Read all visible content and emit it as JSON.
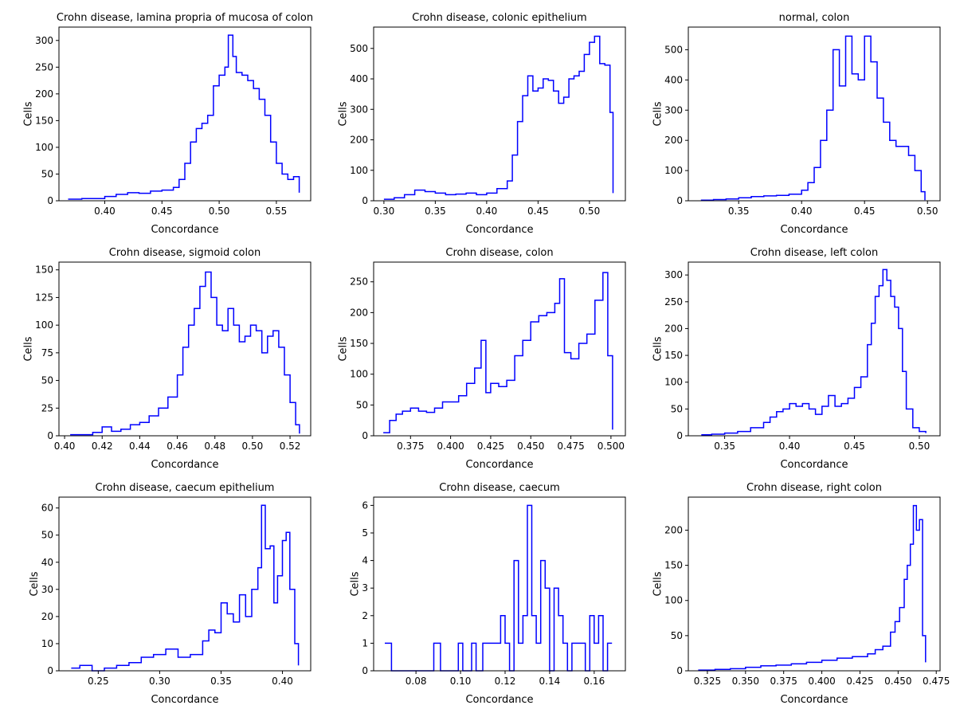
{
  "chart_data": [
    {
      "type": "line",
      "title": "Crohn disease, lamina propria of mucosa of colon",
      "xlabel": "Concordance",
      "ylabel": "Cells",
      "xlim": [
        0.36,
        0.58
      ],
      "ylim": [
        0,
        325
      ],
      "xticks": [
        0.4,
        0.45,
        0.5,
        0.55
      ],
      "xtick_labels": [
        "0.40",
        "0.45",
        "0.50",
        "0.55"
      ],
      "yticks": [
        0,
        50,
        100,
        150,
        200,
        250,
        300
      ],
      "ytick_labels": [
        "0",
        "50",
        "100",
        "150",
        "200",
        "250",
        "300"
      ],
      "series": [
        {
          "x": [
            0.368,
            0.38,
            0.39,
            0.4,
            0.41,
            0.42,
            0.43,
            0.44,
            0.45,
            0.46,
            0.465,
            0.47,
            0.475,
            0.48,
            0.485,
            0.49,
            0.495,
            0.5,
            0.505,
            0.508,
            0.512,
            0.515,
            0.52,
            0.525,
            0.53,
            0.535,
            0.54,
            0.545,
            0.55,
            0.555,
            0.56,
            0.565,
            0.57
          ],
          "y": [
            3,
            4,
            4,
            8,
            12,
            15,
            14,
            18,
            20,
            25,
            40,
            70,
            110,
            135,
            145,
            160,
            215,
            235,
            250,
            310,
            270,
            240,
            235,
            225,
            210,
            190,
            160,
            110,
            70,
            50,
            40,
            45,
            15
          ]
        }
      ],
      "color": "#0000ff"
    },
    {
      "type": "line",
      "title": "Crohn disease, colonic epithelium",
      "xlabel": "Concordance",
      "ylabel": "Cells",
      "xlim": [
        0.29,
        0.535
      ],
      "ylim": [
        0,
        570
      ],
      "xticks": [
        0.3,
        0.35,
        0.4,
        0.45,
        0.5
      ],
      "xtick_labels": [
        "0.30",
        "0.35",
        "0.40",
        "0.45",
        "0.50"
      ],
      "yticks": [
        0,
        100,
        200,
        300,
        400,
        500
      ],
      "ytick_labels": [
        "0",
        "100",
        "200",
        "300",
        "400",
        "500"
      ],
      "series": [
        {
          "x": [
            0.3,
            0.31,
            0.32,
            0.33,
            0.34,
            0.35,
            0.36,
            0.37,
            0.38,
            0.39,
            0.4,
            0.41,
            0.42,
            0.425,
            0.43,
            0.435,
            0.44,
            0.445,
            0.45,
            0.455,
            0.46,
            0.465,
            0.47,
            0.475,
            0.48,
            0.485,
            0.49,
            0.495,
            0.5,
            0.505,
            0.51,
            0.515,
            0.52,
            0.523
          ],
          "y": [
            5,
            10,
            20,
            35,
            30,
            25,
            20,
            22,
            25,
            20,
            25,
            40,
            65,
            150,
            260,
            345,
            410,
            360,
            370,
            400,
            395,
            360,
            320,
            340,
            400,
            410,
            425,
            480,
            520,
            540,
            450,
            445,
            290,
            25
          ]
        }
      ],
      "color": "#0000ff"
    },
    {
      "type": "line",
      "title": "normal, colon",
      "xlabel": "Concordance",
      "ylabel": "Cells",
      "xlim": [
        0.31,
        0.51
      ],
      "ylim": [
        0,
        575
      ],
      "xticks": [
        0.35,
        0.4,
        0.45,
        0.5
      ],
      "xtick_labels": [
        "0.35",
        "0.40",
        "0.45",
        "0.50"
      ],
      "yticks": [
        0,
        100,
        200,
        300,
        400,
        500
      ],
      "ytick_labels": [
        "0",
        "100",
        "200",
        "300",
        "400",
        "500"
      ],
      "series": [
        {
          "x": [
            0.32,
            0.33,
            0.34,
            0.35,
            0.36,
            0.37,
            0.38,
            0.39,
            0.4,
            0.405,
            0.41,
            0.415,
            0.42,
            0.425,
            0.43,
            0.435,
            0.44,
            0.445,
            0.45,
            0.455,
            0.46,
            0.465,
            0.47,
            0.475,
            0.48,
            0.485,
            0.49,
            0.495,
            0.498
          ],
          "y": [
            2,
            4,
            6,
            10,
            14,
            16,
            18,
            22,
            35,
            60,
            110,
            200,
            300,
            500,
            380,
            545,
            420,
            400,
            545,
            460,
            340,
            260,
            200,
            180,
            180,
            150,
            100,
            30,
            2
          ]
        }
      ],
      "color": "#0000ff"
    },
    {
      "type": "line",
      "title": "Crohn disease, sigmoid colon",
      "xlabel": "Concordance",
      "ylabel": "Cells",
      "xlim": [
        0.397,
        0.531
      ],
      "ylim": [
        0,
        157
      ],
      "xticks": [
        0.4,
        0.42,
        0.44,
        0.46,
        0.48,
        0.5,
        0.52
      ],
      "xtick_labels": [
        "0.40",
        "0.42",
        "0.44",
        "0.46",
        "0.48",
        "0.50",
        "0.52"
      ],
      "yticks": [
        0,
        25,
        50,
        75,
        100,
        125,
        150
      ],
      "ytick_labels": [
        "0",
        "25",
        "50",
        "75",
        "100",
        "125",
        "150"
      ],
      "series": [
        {
          "x": [
            0.403,
            0.41,
            0.415,
            0.42,
            0.425,
            0.43,
            0.435,
            0.44,
            0.445,
            0.45,
            0.455,
            0.46,
            0.463,
            0.466,
            0.469,
            0.472,
            0.475,
            0.478,
            0.481,
            0.484,
            0.487,
            0.49,
            0.493,
            0.496,
            0.499,
            0.502,
            0.505,
            0.508,
            0.511,
            0.514,
            0.517,
            0.52,
            0.523,
            0.525
          ],
          "y": [
            1,
            1,
            3,
            8,
            4,
            6,
            10,
            12,
            18,
            25,
            35,
            55,
            80,
            100,
            115,
            135,
            148,
            125,
            100,
            95,
            115,
            100,
            85,
            90,
            100,
            95,
            75,
            90,
            95,
            80,
            55,
            30,
            10,
            2
          ]
        }
      ],
      "color": "#0000ff"
    },
    {
      "type": "line",
      "title": "Crohn disease, colon",
      "xlabel": "Concordance",
      "ylabel": "Cells",
      "xlim": [
        0.352,
        0.509
      ],
      "ylim": [
        0,
        282
      ],
      "xticks": [
        0.375,
        0.4,
        0.425,
        0.45,
        0.475,
        0.5
      ],
      "xtick_labels": [
        "0.375",
        "0.400",
        "0.425",
        "0.450",
        "0.475",
        "0.500"
      ],
      "yticks": [
        0,
        50,
        100,
        150,
        200,
        250
      ],
      "ytick_labels": [
        "0",
        "50",
        "100",
        "150",
        "200",
        "250"
      ],
      "series": [
        {
          "x": [
            0.358,
            0.362,
            0.366,
            0.37,
            0.375,
            0.38,
            0.385,
            0.39,
            0.395,
            0.4,
            0.405,
            0.41,
            0.415,
            0.419,
            0.422,
            0.425,
            0.43,
            0.435,
            0.44,
            0.445,
            0.45,
            0.455,
            0.46,
            0.465,
            0.468,
            0.471,
            0.475,
            0.48,
            0.485,
            0.49,
            0.495,
            0.498,
            0.501
          ],
          "y": [
            5,
            25,
            35,
            40,
            45,
            40,
            38,
            45,
            55,
            55,
            65,
            85,
            110,
            155,
            70,
            85,
            80,
            90,
            130,
            155,
            185,
            195,
            200,
            215,
            255,
            135,
            125,
            150,
            165,
            220,
            265,
            130,
            10
          ]
        }
      ],
      "color": "#0000ff"
    },
    {
      "type": "line",
      "title": "Crohn disease, left colon",
      "xlabel": "Concordance",
      "ylabel": "Cells",
      "xlim": [
        0.322,
        0.516
      ],
      "ylim": [
        0,
        324
      ],
      "xticks": [
        0.35,
        0.4,
        0.45,
        0.5
      ],
      "xtick_labels": [
        "0.35",
        "0.40",
        "0.45",
        "0.50"
      ],
      "yticks": [
        0,
        50,
        100,
        150,
        200,
        250,
        300
      ],
      "ytick_labels": [
        "0",
        "50",
        "100",
        "150",
        "200",
        "250",
        "300"
      ],
      "series": [
        {
          "x": [
            0.332,
            0.34,
            0.35,
            0.36,
            0.37,
            0.38,
            0.385,
            0.39,
            0.395,
            0.4,
            0.405,
            0.41,
            0.415,
            0.42,
            0.425,
            0.43,
            0.435,
            0.44,
            0.445,
            0.45,
            0.455,
            0.46,
            0.463,
            0.466,
            0.469,
            0.472,
            0.475,
            0.478,
            0.481,
            0.484,
            0.487,
            0.49,
            0.495,
            0.5,
            0.505
          ],
          "y": [
            2,
            3,
            5,
            8,
            15,
            25,
            35,
            45,
            50,
            60,
            55,
            60,
            50,
            40,
            55,
            75,
            55,
            60,
            70,
            90,
            110,
            170,
            210,
            260,
            280,
            310,
            290,
            260,
            240,
            200,
            120,
            50,
            15,
            8,
            5
          ]
        }
      ],
      "color": "#0000ff"
    },
    {
      "type": "line",
      "title": "Crohn disease, caecum epithelium",
      "xlabel": "Concordance",
      "ylabel": "Cells",
      "xlim": [
        0.218,
        0.423
      ],
      "ylim": [
        0,
        64
      ],
      "xticks": [
        0.25,
        0.3,
        0.35,
        0.4
      ],
      "xtick_labels": [
        "0.25",
        "0.30",
        "0.35",
        "0.40"
      ],
      "yticks": [
        0,
        10,
        20,
        30,
        40,
        50,
        60
      ],
      "ytick_labels": [
        "0",
        "10",
        "20",
        "30",
        "40",
        "50",
        "60"
      ],
      "series": [
        {
          "x": [
            0.228,
            0.235,
            0.245,
            0.255,
            0.265,
            0.275,
            0.285,
            0.295,
            0.305,
            0.315,
            0.325,
            0.335,
            0.34,
            0.345,
            0.35,
            0.355,
            0.36,
            0.365,
            0.37,
            0.375,
            0.38,
            0.383,
            0.386,
            0.39,
            0.393,
            0.396,
            0.4,
            0.403,
            0.406,
            0.41,
            0.413
          ],
          "y": [
            1,
            2,
            0,
            1,
            2,
            3,
            5,
            6,
            8,
            5,
            6,
            11,
            15,
            14,
            25,
            21,
            18,
            28,
            20,
            30,
            38,
            61,
            45,
            46,
            25,
            35,
            48,
            51,
            30,
            10,
            2
          ]
        }
      ],
      "color": "#0000ff"
    },
    {
      "type": "line",
      "title": "Crohn disease, caecum",
      "xlabel": "Concordance",
      "ylabel": "Cells",
      "xlim": [
        0.061,
        0.174
      ],
      "ylim": [
        0,
        6.3
      ],
      "xticks": [
        0.08,
        0.1,
        0.12,
        0.14,
        0.16
      ],
      "xtick_labels": [
        "0.08",
        "0.10",
        "0.12",
        "0.14",
        "0.16"
      ],
      "yticks": [
        0,
        1,
        2,
        3,
        4,
        5,
        6
      ],
      "ytick_labels": [
        "0",
        "1",
        "2",
        "3",
        "4",
        "5",
        "6"
      ],
      "series": [
        {
          "x": [
            0.066,
            0.069,
            0.088,
            0.091,
            0.099,
            0.101,
            0.105,
            0.107,
            0.11,
            0.112,
            0.114,
            0.116,
            0.118,
            0.12,
            0.122,
            0.124,
            0.126,
            0.128,
            0.13,
            0.132,
            0.134,
            0.136,
            0.138,
            0.14,
            0.142,
            0.144,
            0.146,
            0.148,
            0.15,
            0.152,
            0.154,
            0.156,
            0.158,
            0.16,
            0.162,
            0.164,
            0.166,
            0.168
          ],
          "y": [
            1,
            0,
            1,
            0,
            1,
            0,
            1,
            0,
            1,
            1,
            1,
            1,
            2,
            1,
            0,
            4,
            1,
            2,
            6,
            2,
            1,
            4,
            3,
            0,
            3,
            2,
            1,
            0,
            1,
            1,
            1,
            0,
            2,
            1,
            2,
            0,
            1,
            1
          ]
        }
      ],
      "color": "#0000ff"
    },
    {
      "type": "line",
      "title": "Crohn disease, right colon",
      "xlabel": "Concordance",
      "ylabel": "Cells",
      "xlim": [
        0.3125,
        0.4775
      ],
      "ylim": [
        0,
        247
      ],
      "xticks": [
        0.325,
        0.35,
        0.375,
        0.4,
        0.425,
        0.45,
        0.475
      ],
      "xtick_labels": [
        "0.325",
        "0.350",
        "0.375",
        "0.400",
        "0.425",
        "0.450",
        "0.475"
      ],
      "yticks": [
        0,
        50,
        100,
        150,
        200
      ],
      "ytick_labels": [
        "0",
        "50",
        "100",
        "150",
        "200"
      ],
      "series": [
        {
          "x": [
            0.319,
            0.33,
            0.34,
            0.35,
            0.36,
            0.37,
            0.38,
            0.39,
            0.4,
            0.41,
            0.42,
            0.43,
            0.435,
            0.44,
            0.445,
            0.448,
            0.451,
            0.454,
            0.456,
            0.458,
            0.46,
            0.462,
            0.464,
            0.466,
            0.468
          ],
          "y": [
            1,
            2,
            3,
            5,
            7,
            8,
            10,
            12,
            15,
            18,
            20,
            24,
            30,
            35,
            55,
            70,
            90,
            130,
            150,
            180,
            235,
            200,
            215,
            50,
            12
          ]
        }
      ],
      "color": "#0000ff"
    }
  ]
}
